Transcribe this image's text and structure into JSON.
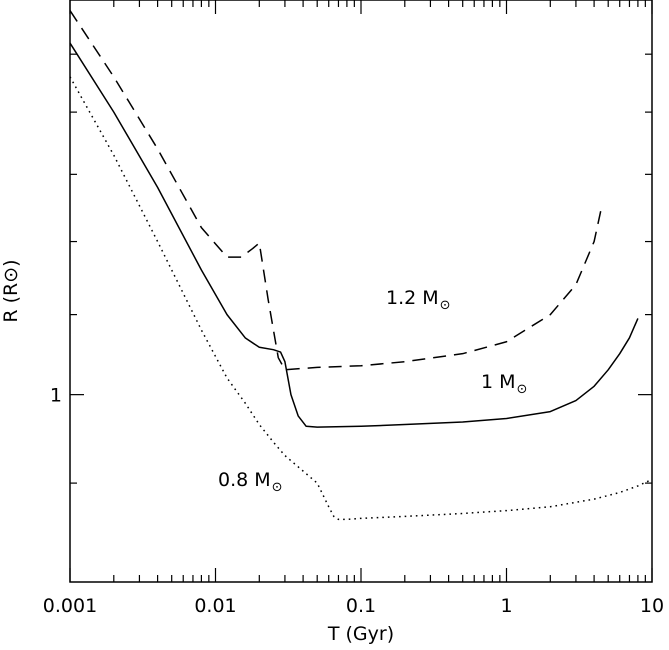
{
  "chart_data": {
    "type": "line",
    "xlabel": "T (Gyr)",
    "ylabel": "R (R⊙)",
    "x_scale": "log",
    "y_scale": "log",
    "xlim": [
      0.001,
      10
    ],
    "ylim": [
      0.8,
      1.6
    ],
    "x_tick_labels": [
      "0.001",
      "0.01",
      "0.1",
      "1",
      "10"
    ],
    "y_tick_labels": [
      "1"
    ],
    "grid": false,
    "series": [
      {
        "name": "1.2 M⊙",
        "label_text": "1.2 M",
        "style": "dashed",
        "x": [
          0.001,
          0.002,
          0.004,
          0.008,
          0.012,
          0.015,
          0.018,
          0.02,
          0.023,
          0.027,
          0.03,
          0.035,
          0.05,
          0.1,
          0.2,
          0.5,
          1,
          2,
          3,
          4,
          4.5
        ],
        "y": [
          1.58,
          1.46,
          1.34,
          1.22,
          1.178,
          1.178,
          1.19,
          1.198,
          1.12,
          1.045,
          1.03,
          1.031,
          1.033,
          1.035,
          1.04,
          1.05,
          1.065,
          1.1,
          1.14,
          1.2,
          1.25
        ]
      },
      {
        "name": "1 M⊙",
        "label_text": "1 M",
        "style": "solid",
        "x": [
          0.001,
          0.002,
          0.004,
          0.008,
          0.012,
          0.016,
          0.02,
          0.025,
          0.028,
          0.03,
          0.033,
          0.037,
          0.042,
          0.05,
          0.1,
          0.2,
          0.5,
          1,
          2,
          3,
          4,
          5,
          6,
          7,
          8
        ],
        "y": [
          1.52,
          1.4,
          1.28,
          1.16,
          1.1,
          1.07,
          1.058,
          1.055,
          1.052,
          1.04,
          1.0,
          0.975,
          0.963,
          0.962,
          0.963,
          0.965,
          0.968,
          0.972,
          0.98,
          0.993,
          1.01,
          1.03,
          1.05,
          1.07,
          1.095
        ]
      },
      {
        "name": "0.8 M⊙",
        "label_text": "0.8 M",
        "style": "dotted",
        "x": [
          0.001,
          0.002,
          0.004,
          0.008,
          0.012,
          0.016,
          0.02,
          0.025,
          0.03,
          0.04,
          0.05,
          0.06,
          0.065,
          0.07,
          0.08,
          0.1,
          0.2,
          0.5,
          1,
          2,
          4,
          6,
          8,
          10
        ],
        "y": [
          1.46,
          1.33,
          1.2,
          1.08,
          1.02,
          0.99,
          0.965,
          0.945,
          0.93,
          0.913,
          0.9,
          0.875,
          0.865,
          0.862,
          0.862,
          0.863,
          0.865,
          0.868,
          0.871,
          0.875,
          0.883,
          0.89,
          0.897,
          0.904
        ]
      }
    ]
  }
}
